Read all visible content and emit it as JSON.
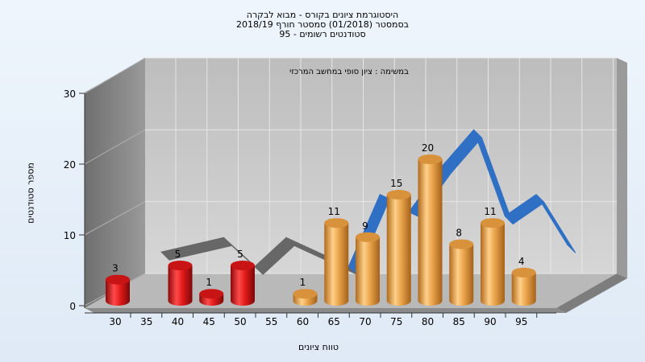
{
  "title": {
    "line1": "היסטוגרמת ציונים בקורס - מבוא לבקרה",
    "line2": "בסמסטר  (01/2018)  סמסטר חורף  2018/19",
    "line3": "סטודנטים רשומים - 95"
  },
  "colors": {
    "fail_bar": "#e21a1a",
    "pass_bar": "#e9a34a",
    "ribbon_low": "#676767",
    "ribbon_high": "#2f6fc4",
    "back_wall": "#c4c4c4",
    "left_wall": "#8a8a8a"
  },
  "chart_data": {
    "type": "bar",
    "style": "3d-cylinder-with-ribbon",
    "annotation": "במשימה : ציון סופי במחשב המרכזי",
    "xlabel": "טווח ציונים",
    "ylabel": "מספר סטודנטים",
    "ylim": [
      0,
      30
    ],
    "yticks": [
      "0",
      "10",
      "20",
      "30"
    ],
    "xticks": [
      "30",
      "35",
      "40",
      "45",
      "50",
      "55",
      "60",
      "65",
      "70",
      "75",
      "80",
      "85",
      "90",
      "95"
    ],
    "grid": true,
    "bars": [
      {
        "x": 30,
        "value": 3,
        "label": "3",
        "group": "fail"
      },
      {
        "x": 40,
        "value": 5,
        "label": "5",
        "group": "fail"
      },
      {
        "x": 45,
        "value": 1,
        "label": "1",
        "group": "fail"
      },
      {
        "x": 50,
        "value": 5,
        "label": "5",
        "group": "fail"
      },
      {
        "x": 60,
        "value": 1,
        "label": "1",
        "group": "pass"
      },
      {
        "x": 65,
        "value": 11,
        "label": "11",
        "group": "pass"
      },
      {
        "x": 70,
        "value": 9,
        "label": "9",
        "group": "pass"
      },
      {
        "x": 75,
        "value": 15,
        "label": "15",
        "group": "pass"
      },
      {
        "x": 80,
        "value": 20,
        "label": "20",
        "group": "pass"
      },
      {
        "x": 85,
        "value": 8,
        "label": "8",
        "group": "pass"
      },
      {
        "x": 90,
        "value": 11,
        "label": "11",
        "group": "pass"
      },
      {
        "x": 95,
        "value": 4,
        "label": "4",
        "group": "pass"
      }
    ]
  }
}
